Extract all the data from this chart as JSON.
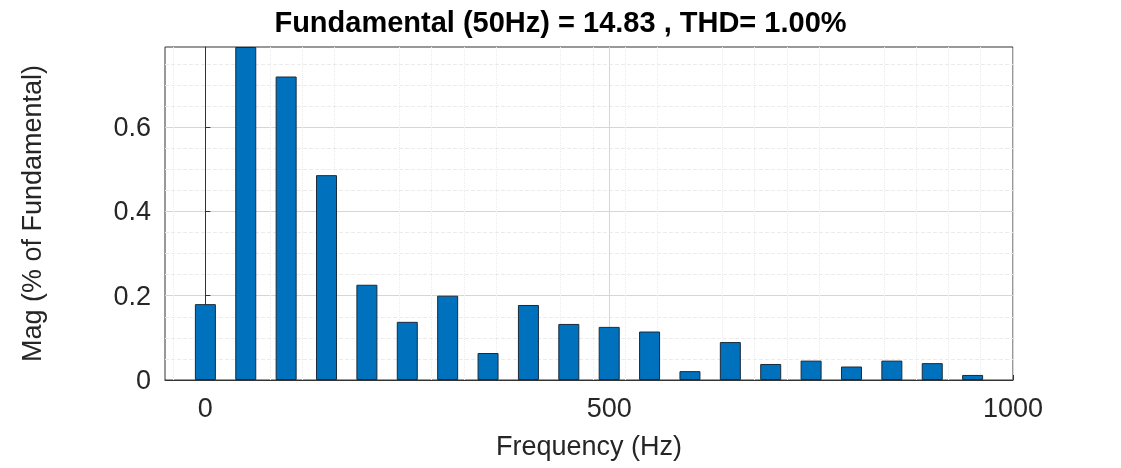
{
  "chart_data": {
    "type": "bar",
    "title": "Fundamental (50Hz) = 14.83 , THD= 1.00%",
    "xlabel": "Frequency (Hz)",
    "ylabel": "Mag (% of Fundamental)",
    "x": [
      0,
      50,
      100,
      150,
      200,
      250,
      300,
      350,
      400,
      450,
      500,
      550,
      600,
      650,
      700,
      750,
      800,
      850,
      900,
      950
    ],
    "values": [
      0.18,
      0.79,
      0.72,
      0.486,
      0.226,
      0.138,
      0.2,
      0.064,
      0.178,
      0.133,
      0.126,
      0.115,
      0.021,
      0.09,
      0.038,
      0.046,
      0.032,
      0.046,
      0.04,
      0.012
    ],
    "color": "#0072bd",
    "xlim": [
      -50,
      1000
    ],
    "xticks": [
      0,
      500,
      1000
    ],
    "ylim": [
      0,
      0.79
    ],
    "yticks": [
      0,
      0.2,
      0.4,
      0.6
    ],
    "grid": true
  }
}
